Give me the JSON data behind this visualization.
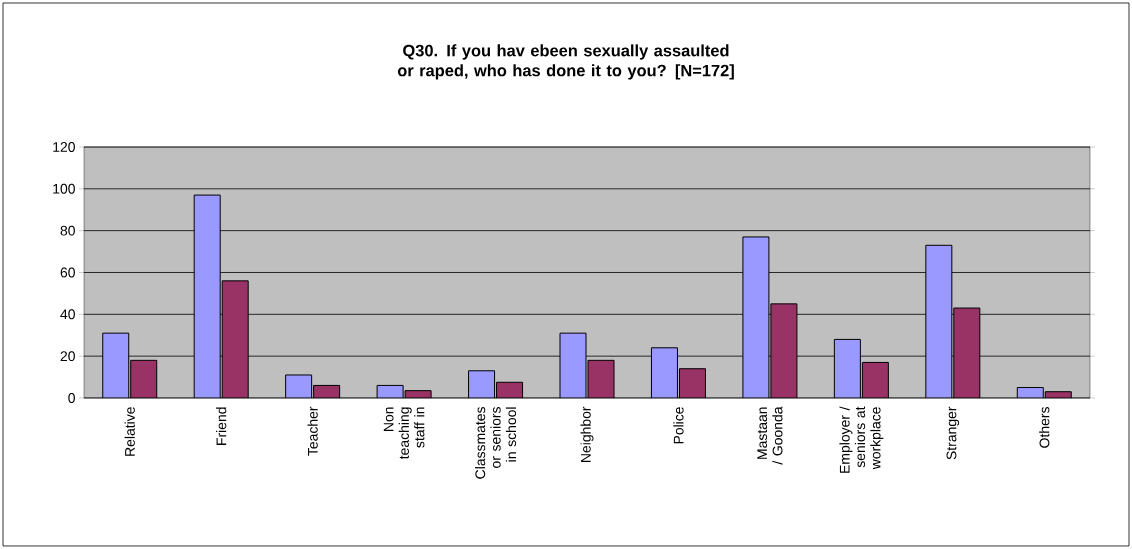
{
  "chart_data": {
    "type": "bar",
    "title": "Q30. If you hav ebeen sexually assaulted or raped, who has done it to you? [N=172]",
    "categories": [
      "Relative",
      "Friend",
      "Teacher",
      "Non teaching staff in",
      "Classmates or seniors in school",
      "Neighbor",
      "Police",
      "Mastaan / Goonda",
      "Employer / seniors at workplace",
      "Stranger",
      "Others"
    ],
    "series": [
      {
        "color": "#9999ff",
        "values": [
          31,
          97,
          11,
          6,
          13,
          31,
          24,
          77,
          28,
          73,
          5
        ]
      },
      {
        "color": "#993366",
        "values": [
          18,
          56,
          6,
          3.5,
          7.5,
          18,
          14,
          45,
          17,
          43,
          3
        ]
      }
    ],
    "ylim": [
      0,
      120
    ],
    "yticks": [
      0,
      20,
      40,
      60,
      80,
      100,
      120
    ],
    "grid": "y"
  }
}
